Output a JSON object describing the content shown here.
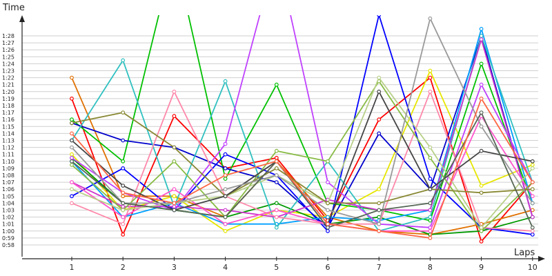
{
  "chart_data": {
    "type": "line",
    "ylabel": "Time",
    "xlabel": "Laps",
    "x": [
      1,
      2,
      3,
      4,
      5,
      6,
      7,
      8,
      9,
      10
    ],
    "y_unit": "seconds (labels shown as m:ss)",
    "ylim": [
      56,
      90
    ],
    "y_ticks": [
      "0:58",
      "0:59",
      "1:00",
      "1:01",
      "1:02",
      "1:03",
      "1:04",
      "1:05",
      "1:06",
      "1:07",
      "1:08",
      "1:09",
      "1:10",
      "1:11",
      "1:12",
      "1:13",
      "1:14",
      "1:15",
      "1:16",
      "1:17",
      "1:18",
      "1:19",
      "1:20",
      "1:21",
      "1:22",
      "1:23",
      "1:24",
      "1:25",
      "1:26",
      "1:27",
      "1:28"
    ],
    "grid": true,
    "series": [
      {
        "color": "#ff0000",
        "values": [
          79,
          59.5,
          76.5,
          69,
          70.5,
          61.5,
          76,
          82,
          58.5,
          67
        ]
      },
      {
        "color": "#e07000",
        "values": [
          82,
          65,
          65,
          62,
          70,
          62,
          60,
          59.5,
          61,
          63
        ]
      },
      {
        "color": "#e6e600",
        "values": [
          71,
          63,
          65,
          60,
          63,
          62,
          66,
          83,
          66.5,
          69.5
        ]
      },
      {
        "color": "#00c000",
        "values": [
          76,
          70,
          100,
          67.5,
          81,
          64,
          63,
          61.5,
          84,
          64
        ]
      },
      {
        "color": "#009900",
        "values": [
          70.5,
          64,
          63,
          62,
          64,
          61,
          62,
          59.5,
          60,
          62
        ]
      },
      {
        "color": "#0000cc",
        "values": [
          75.5,
          73,
          72,
          69,
          67,
          60.5,
          74,
          66,
          88,
          62
        ]
      },
      {
        "color": "#0000ff",
        "values": [
          65,
          69,
          63,
          71,
          68,
          60,
          91,
          67.5,
          60.5,
          59.5
        ]
      },
      {
        "color": "#00a0ff",
        "values": [
          70,
          62,
          64,
          61,
          61,
          62,
          61.5,
          63,
          89,
          64
        ]
      },
      {
        "color": "#30c0c0",
        "values": [
          73,
          84.5,
          63.5,
          81.5,
          60.5,
          70,
          60,
          62,
          88,
          67
        ]
      },
      {
        "color": "#cc33cc",
        "values": [
          67,
          63.5,
          63.5,
          63,
          62,
          64.5,
          63,
          63,
          87.5,
          62
        ]
      },
      {
        "color": "#c040ff",
        "values": [
          70.5,
          65.5,
          63,
          72.5,
          100,
          67,
          61,
          60.5,
          81,
          67
        ]
      },
      {
        "color": "#ff88aa",
        "values": [
          64,
          61,
          80,
          65,
          62,
          61,
          61,
          80,
          60.5,
          60
        ]
      },
      {
        "color": "#ff55cc",
        "values": [
          67,
          62,
          66,
          61,
          63,
          61,
          60,
          60,
          76.5,
          65
        ]
      },
      {
        "color": "#88bb44",
        "values": [
          69.5,
          63,
          70,
          62,
          71.5,
          70,
          81.5,
          70.5,
          60,
          67
        ]
      },
      {
        "color": "#b8d088",
        "values": [
          66,
          63,
          64,
          65,
          68,
          64,
          82,
          72,
          60.5,
          69
        ]
      },
      {
        "color": "#888833",
        "values": [
          75.5,
          77,
          72,
          65,
          69,
          64,
          64,
          66,
          65.5,
          66
        ]
      },
      {
        "color": "#444444",
        "values": [
          73,
          66.5,
          63,
          65,
          70,
          61,
          80,
          66,
          71.5,
          70
        ]
      },
      {
        "color": "#999999",
        "values": [
          72,
          64,
          64,
          66,
          68,
          63,
          61,
          90.5,
          75,
          64
        ]
      },
      {
        "color": "#556655",
        "values": [
          70,
          64,
          63,
          62,
          70,
          60.5,
          63,
          64,
          77,
          60.5
        ]
      },
      {
        "color": "#ff6644",
        "values": [
          74,
          65.5,
          64,
          68,
          70,
          61,
          60,
          59,
          79,
          67
        ]
      }
    ]
  }
}
